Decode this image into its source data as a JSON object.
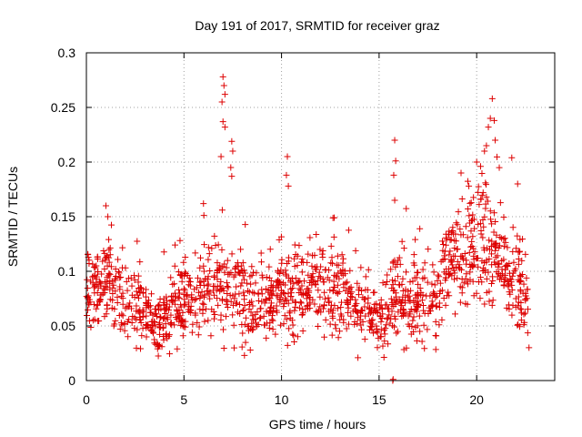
{
  "chart_data": {
    "type": "scatter",
    "title": "Day 191 of 2017, SRMTID for receiver graz",
    "xlabel": "GPS time / hours",
    "ylabel": "SRMTID / TECUs",
    "xlim": [
      0,
      24
    ],
    "ylim": [
      0,
      0.3
    ],
    "xticks": [
      0,
      5,
      10,
      15,
      20
    ],
    "yticks": [
      0,
      0.05,
      0.1,
      0.15,
      0.2,
      0.25,
      0.3
    ],
    "xtick_labels": [
      "0",
      "5",
      "10",
      "15",
      "20"
    ],
    "ytick_labels": [
      "0",
      "0.05",
      "0.1",
      "0.15",
      "0.2",
      "0.25",
      "0.3"
    ],
    "grid": true,
    "marker": "+",
    "color": "#dd0000",
    "series": [
      {
        "name": "SRMTID",
        "envelope": [
          [
            0.0,
            0.08,
            0.02
          ],
          [
            0.5,
            0.085,
            0.02
          ],
          [
            1.0,
            0.09,
            0.022
          ],
          [
            1.5,
            0.082,
            0.02
          ],
          [
            2.0,
            0.072,
            0.018
          ],
          [
            2.5,
            0.065,
            0.016
          ],
          [
            3.0,
            0.06,
            0.015
          ],
          [
            3.5,
            0.052,
            0.012
          ],
          [
            4.0,
            0.055,
            0.013
          ],
          [
            4.5,
            0.068,
            0.016
          ],
          [
            5.0,
            0.075,
            0.018
          ],
          [
            5.5,
            0.085,
            0.02
          ],
          [
            6.0,
            0.09,
            0.022
          ],
          [
            6.5,
            0.085,
            0.02
          ],
          [
            7.0,
            0.09,
            0.022
          ],
          [
            7.5,
            0.082,
            0.02
          ],
          [
            8.0,
            0.08,
            0.02
          ],
          [
            8.5,
            0.072,
            0.018
          ],
          [
            9.0,
            0.07,
            0.018
          ],
          [
            9.5,
            0.075,
            0.018
          ],
          [
            10.0,
            0.085,
            0.02
          ],
          [
            10.5,
            0.08,
            0.02
          ],
          [
            11.0,
            0.08,
            0.02
          ],
          [
            11.5,
            0.085,
            0.02
          ],
          [
            12.0,
            0.085,
            0.02
          ],
          [
            12.5,
            0.082,
            0.02
          ],
          [
            13.0,
            0.08,
            0.02
          ],
          [
            13.5,
            0.075,
            0.018
          ],
          [
            14.0,
            0.072,
            0.018
          ],
          [
            14.5,
            0.065,
            0.016
          ],
          [
            15.0,
            0.055,
            0.015
          ],
          [
            15.5,
            0.065,
            0.018
          ],
          [
            16.0,
            0.08,
            0.02
          ],
          [
            16.5,
            0.075,
            0.018
          ],
          [
            17.0,
            0.075,
            0.018
          ],
          [
            17.5,
            0.07,
            0.018
          ],
          [
            18.0,
            0.08,
            0.02
          ],
          [
            18.5,
            0.095,
            0.022
          ],
          [
            19.0,
            0.11,
            0.025
          ],
          [
            19.5,
            0.12,
            0.025
          ],
          [
            20.0,
            0.125,
            0.025
          ],
          [
            20.5,
            0.14,
            0.03
          ],
          [
            21.0,
            0.11,
            0.025
          ],
          [
            21.5,
            0.1,
            0.022
          ],
          [
            22.0,
            0.09,
            0.022
          ],
          [
            22.5,
            0.075,
            0.018
          ]
        ],
        "spikes": [
          [
            7.0,
            0.278
          ],
          [
            7.05,
            0.27
          ],
          [
            7.1,
            0.262
          ],
          [
            6.95,
            0.255
          ],
          [
            7.0,
            0.237
          ],
          [
            7.1,
            0.232
          ],
          [
            6.9,
            0.205
          ],
          [
            7.45,
            0.219
          ],
          [
            7.5,
            0.21
          ],
          [
            7.4,
            0.195
          ],
          [
            7.45,
            0.187
          ],
          [
            10.3,
            0.205
          ],
          [
            10.25,
            0.188
          ],
          [
            10.35,
            0.178
          ],
          [
            15.8,
            0.22
          ],
          [
            15.85,
            0.201
          ],
          [
            15.75,
            0.188
          ],
          [
            15.8,
            0.165
          ],
          [
            20.8,
            0.258
          ],
          [
            20.7,
            0.24
          ],
          [
            20.9,
            0.238
          ],
          [
            20.6,
            0.232
          ],
          [
            20.5,
            0.215
          ],
          [
            20.4,
            0.21
          ],
          [
            20.95,
            0.22
          ],
          [
            21.8,
            0.204
          ],
          [
            22.1,
            0.18
          ],
          [
            6.0,
            0.162
          ],
          [
            1.0,
            0.16
          ],
          [
            1.1,
            0.15
          ],
          [
            19.2,
            0.19
          ],
          [
            19.6,
            0.178
          ],
          [
            20.0,
            0.2
          ],
          [
            20.2,
            0.196
          ],
          [
            15.7,
            0.0
          ],
          [
            15.72,
            0.001
          ]
        ],
        "x_end": 22.7
      }
    ]
  }
}
